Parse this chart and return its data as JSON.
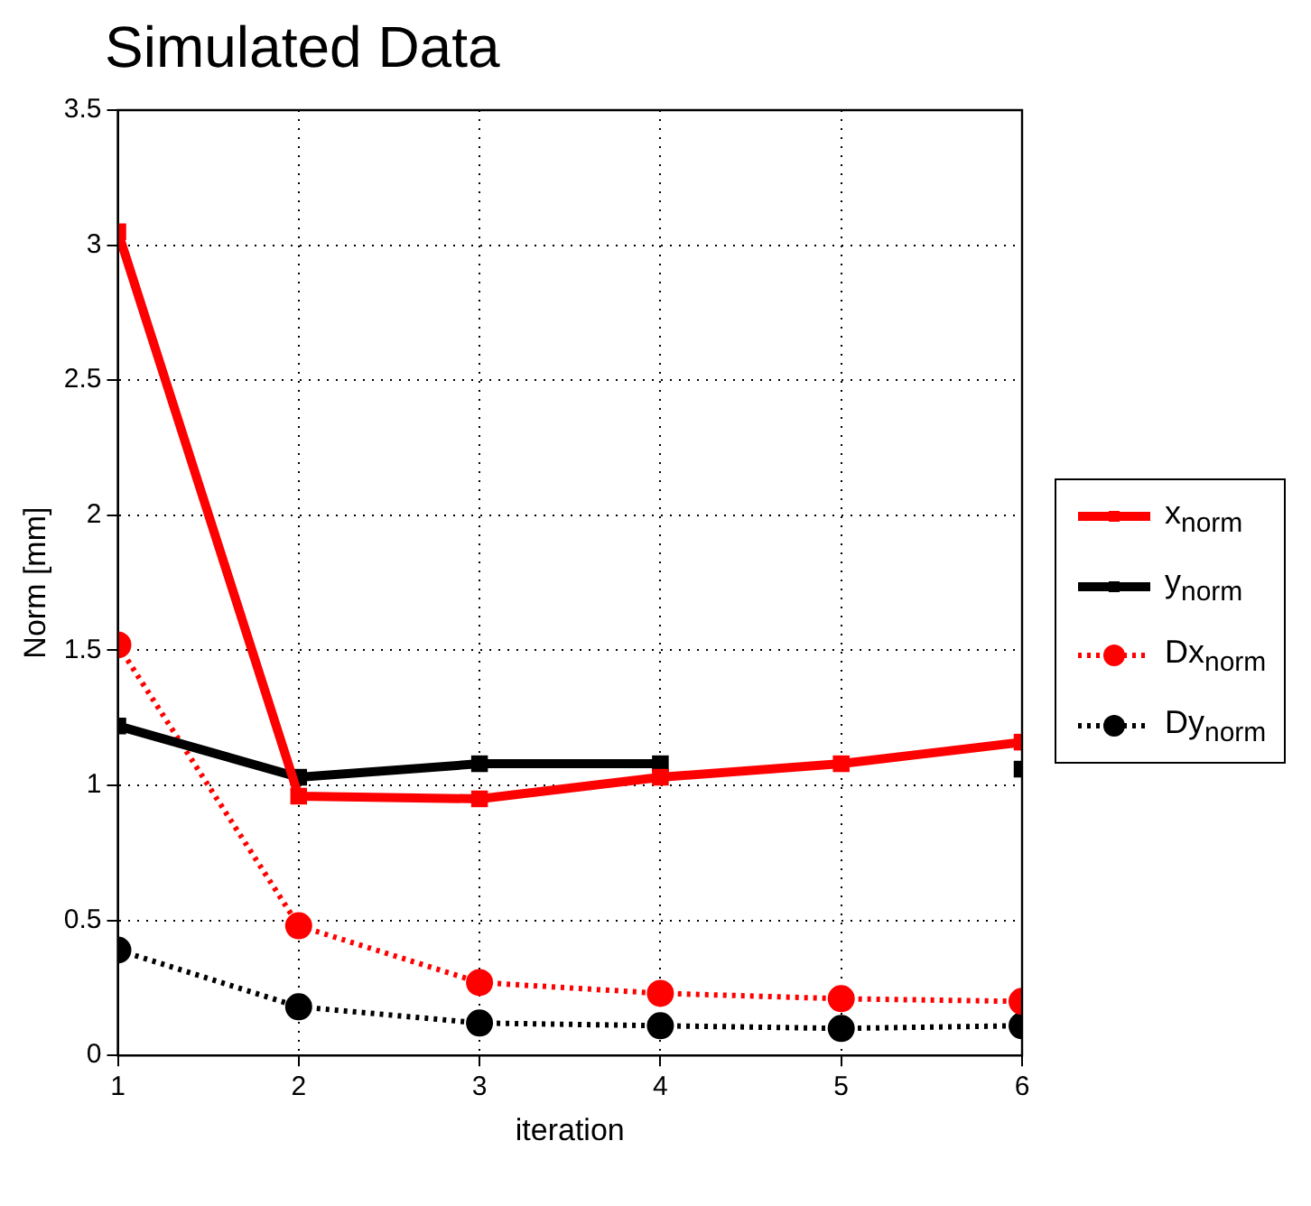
{
  "chart_data": {
    "type": "line",
    "title": "Simulated Data",
    "xlabel": "iteration",
    "ylabel": "Norm [mm]",
    "x": [
      1,
      2,
      3,
      4,
      5,
      6
    ],
    "xlim": [
      1,
      6
    ],
    "xticks": [
      1,
      2,
      3,
      4,
      5,
      6
    ],
    "ylim": [
      0,
      3.5
    ],
    "yticks": [
      0,
      0.5,
      1,
      1.5,
      2,
      2.5,
      3,
      3.5
    ],
    "grid": true,
    "legend": "right",
    "series": [
      {
        "name": "x$_{norm}$",
        "color": "#ff0000",
        "values": [
          3.05,
          0.96,
          0.95,
          1.03,
          1.08,
          1.16
        ],
        "marker": "square",
        "line_style": "solid"
      },
      {
        "name": "y$_{norm}$",
        "color": "#000000",
        "values": [
          1.22,
          1.03,
          1.08,
          1.08,
          null,
          1.06
        ],
        "marker": "square",
        "line_style": "solid"
      },
      {
        "name": "Dx$_{norm}$",
        "color": "#ff0000",
        "values": [
          1.52,
          0.48,
          0.27,
          0.23,
          0.21,
          0.2
        ],
        "marker": "circle",
        "line_style": "dotted"
      },
      {
        "name": "Dy$_{norm}$",
        "color": "#000000",
        "values": [
          0.39,
          0.18,
          0.12,
          0.11,
          0.1,
          0.11
        ],
        "marker": "circle",
        "line_style": "dotted"
      }
    ]
  }
}
